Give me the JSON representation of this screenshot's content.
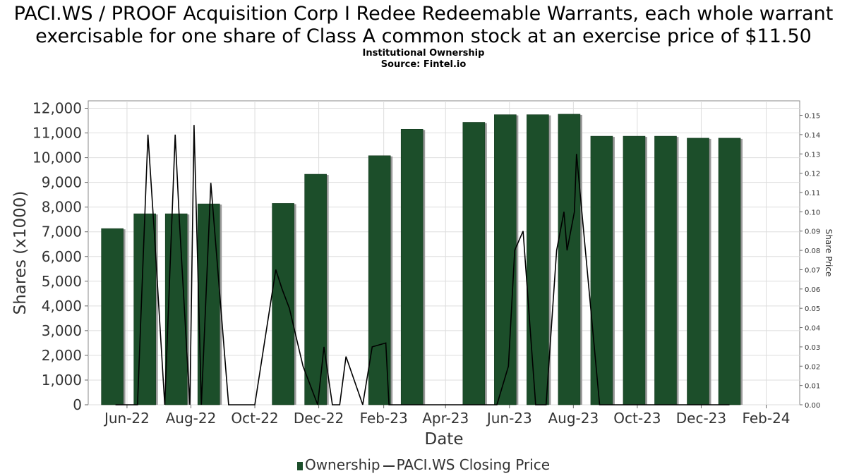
{
  "title": "PACI.WS / PROOF Acquisition Corp I Redee Redeemable Warrants, each whole warrant exercisable for one share of Class A common stock at an exercise price of $11.50",
  "subtitle1": "Institutional Ownership",
  "subtitle2": "Source: Fintel.io",
  "legend": {
    "ownership": "Ownership",
    "price": "PACI.WS Closing Price"
  },
  "colors": {
    "bar": "#1c4e2a",
    "bar_shadow": "#9a9a9a",
    "line": "#000000",
    "grid": "#dddddd"
  },
  "chart_data": {
    "type": "bar",
    "xlabel": "Date",
    "ylabel": "Shares (x1000)",
    "y2label": "Share Price",
    "ylim": [
      0,
      12300
    ],
    "y2lim": [
      0,
      0.1575
    ],
    "yticks": [
      0,
      1000,
      2000,
      3000,
      4000,
      5000,
      6000,
      7000,
      8000,
      9000,
      10000,
      11000,
      12000
    ],
    "yticklabels": [
      "0",
      "1,000",
      "2,000",
      "3,000",
      "4,000",
      "5,000",
      "6,000",
      "7,000",
      "8,000",
      "9,000",
      "10,000",
      "11,000",
      "12,000"
    ],
    "y2ticks": [
      0,
      0.01,
      0.02,
      0.03,
      0.04,
      0.05,
      0.06,
      0.07,
      0.08,
      0.09,
      0.1,
      0.11,
      0.12,
      0.13,
      0.14,
      0.15
    ],
    "y2ticklabels": [
      "0.00",
      "0.01",
      "0.02",
      "0.03",
      "0.04",
      "0.05",
      "0.06",
      "0.07",
      "0.08",
      "0.09",
      "0.10",
      "0.11",
      "0.12",
      "0.13",
      "0.14",
      "0.15"
    ],
    "xlim": [
      "2022-04-25",
      "2024-03-04"
    ],
    "xticks": [
      "2022-06-01",
      "2022-08-01",
      "2022-10-01",
      "2022-12-01",
      "2023-02-01",
      "2023-04-01",
      "2023-06-01",
      "2023-08-01",
      "2023-10-01",
      "2023-12-01",
      "2024-02-01"
    ],
    "xticklabels": [
      "Jun-22",
      "Aug-22",
      "Oct-22",
      "Dec-22",
      "Feb-23",
      "Apr-23",
      "Jun-23",
      "Aug-23",
      "Oct-23",
      "Dec-23",
      "Feb-24"
    ],
    "grid": true,
    "legend_position": "bottom",
    "series": [
      {
        "name": "Ownership",
        "type": "bar",
        "x": [
          "2022-05-18",
          "2022-06-18",
          "2022-07-18",
          "2022-08-18",
          "2022-10-28",
          "2022-11-28",
          "2023-01-28",
          "2023-02-28",
          "2023-04-28",
          "2023-05-28",
          "2023-06-28",
          "2023-07-28",
          "2023-08-28",
          "2023-09-28",
          "2023-10-28",
          "2023-11-28",
          "2023-12-28"
        ],
        "values": [
          7130,
          7730,
          7730,
          8130,
          8150,
          9330,
          10080,
          11150,
          11430,
          11740,
          11740,
          11760,
          10870,
          10870,
          10870,
          10790,
          10790
        ]
      },
      {
        "name": "PACI.WS Closing Price",
        "type": "line",
        "x": [
          "2022-05-21",
          "2022-06-11",
          "2022-06-21",
          "2022-06-27",
          "2022-07-07",
          "2022-07-17",
          "2022-07-21",
          "2022-07-31",
          "2022-08-04",
          "2022-08-11",
          "2022-08-20",
          "2022-09-06",
          "2022-10-01",
          "2022-10-21",
          "2022-10-27",
          "2022-11-03",
          "2022-11-16",
          "2022-11-30",
          "2022-12-06",
          "2022-12-14",
          "2022-12-21",
          "2022-12-27",
          "2023-01-12",
          "2023-01-21",
          "2023-02-03",
          "2023-02-06",
          "2023-02-16",
          "2023-03-26",
          "2023-04-16",
          "2023-04-19",
          "2023-04-26",
          "2023-05-20",
          "2023-05-31",
          "2023-06-06",
          "2023-06-14",
          "2023-06-26",
          "2023-07-06",
          "2023-07-16",
          "2023-07-23",
          "2023-07-26",
          "2023-08-02",
          "2023-08-04",
          "2023-08-26",
          "2023-09-16",
          "2023-09-26",
          "2023-10-11",
          "2023-10-26",
          "2023-11-11",
          "2023-11-26",
          "2023-12-16",
          "2023-12-28"
        ],
        "values": [
          0.0,
          0.0,
          0.14,
          0.09,
          0.0,
          0.14,
          0.095,
          0.0,
          0.145,
          0.0,
          0.115,
          0.0,
          0.0,
          0.07,
          0.06,
          0.05,
          0.02,
          0.0,
          0.03,
          0.0,
          0.0,
          0.025,
          0.0,
          0.03,
          0.032,
          0.0,
          0.0,
          0.0,
          0.0,
          0.0,
          0.0,
          0.0,
          0.02,
          0.08,
          0.09,
          0.0,
          0.0,
          0.08,
          0.1,
          0.08,
          0.1,
          0.13,
          0.0,
          0.0,
          0.0,
          0.0,
          0.0,
          0.0,
          0.0,
          0.0,
          0.0
        ]
      }
    ]
  }
}
